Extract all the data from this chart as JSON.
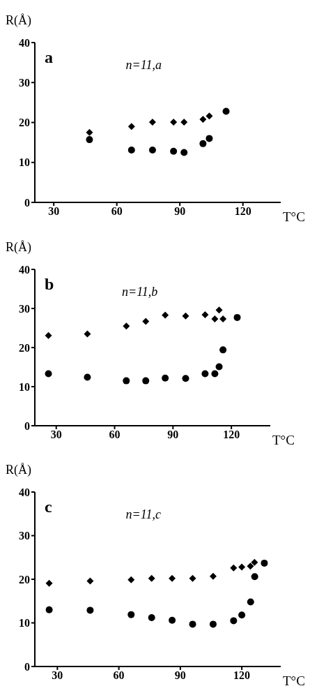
{
  "chart_data": [
    {
      "type": "scatter",
      "title": "a",
      "annotations": [
        "n=11,a"
      ],
      "xlabel": "T°C",
      "ylabel": "R(Å)",
      "xlim": [
        21,
        138
      ],
      "xticks": [
        30,
        60,
        90,
        120
      ],
      "ylim": [
        0,
        40
      ],
      "yticks": [
        0,
        10,
        20,
        30,
        40
      ],
      "series": [
        {
          "color": "#000000",
          "marker": "diamond",
          "x": [
            47,
            67,
            77,
            87,
            92,
            101,
            104
          ],
          "values": [
            17.5,
            19,
            20.1,
            20.1,
            20.1,
            20.8,
            21.6
          ]
        },
        {
          "color": "#000000",
          "marker": "circle",
          "x": [
            47,
            67,
            77,
            87,
            92,
            101,
            104,
            112
          ],
          "values": [
            15.7,
            13.1,
            13.1,
            12.8,
            12.5,
            14.7,
            16,
            22.8
          ]
        }
      ]
    },
    {
      "type": "scatter",
      "title": "b",
      "annotations": [
        "n=11,b"
      ],
      "xlabel": "T°C",
      "ylabel": "R(Å)",
      "xlim": [
        19,
        140
      ],
      "xticks": [
        30,
        60,
        90,
        120
      ],
      "ylim": [
        0,
        40
      ],
      "yticks": [
        0,
        10,
        20,
        30,
        40
      ],
      "series": [
        {
          "color": "#000000",
          "marker": "diamond",
          "x": [
            26,
            46,
            66,
            76,
            86,
            96.5,
            106.5,
            111.5,
            113.7,
            115.7
          ],
          "values": [
            23.1,
            23.5,
            25.5,
            26.7,
            28.3,
            28.1,
            28.4,
            27.3,
            29.6,
            27.3
          ]
        },
        {
          "color": "#000000",
          "marker": "circle",
          "x": [
            26,
            46,
            66,
            76,
            86,
            96.5,
            106.5,
            111.5,
            113.7,
            115.7,
            123
          ],
          "values": [
            13.3,
            12.4,
            11.5,
            11.5,
            12.2,
            12.1,
            13.3,
            13.3,
            15.1,
            19.4,
            27.7
          ]
        }
      ]
    },
    {
      "type": "scatter",
      "title": "c",
      "annotations": [
        "n=11,c"
      ],
      "xlabel": "T°C",
      "ylabel": "R(Å)",
      "xlim": [
        19,
        139
      ],
      "xticks": [
        30,
        60,
        90,
        120
      ],
      "ylim": [
        0,
        40
      ],
      "yticks": [
        0,
        10,
        20,
        30,
        40
      ],
      "series": [
        {
          "color": "#000000",
          "marker": "diamond",
          "x": [
            26,
            46,
            66,
            76,
            86,
            96,
            106,
            116,
            120,
            124.2,
            126.2
          ],
          "values": [
            19.1,
            19.6,
            19.9,
            20.2,
            20.2,
            20.2,
            20.7,
            22.6,
            22.8,
            23,
            23.9
          ]
        },
        {
          "color": "#000000",
          "marker": "circle",
          "x": [
            26,
            46,
            66,
            76,
            86,
            96,
            106,
            116,
            120,
            124.3,
            126.3,
            131
          ],
          "values": [
            13,
            12.9,
            11.9,
            11.2,
            10.6,
            9.7,
            9.7,
            10.5,
            11.8,
            14.8,
            20.6,
            23.7
          ]
        }
      ]
    }
  ]
}
